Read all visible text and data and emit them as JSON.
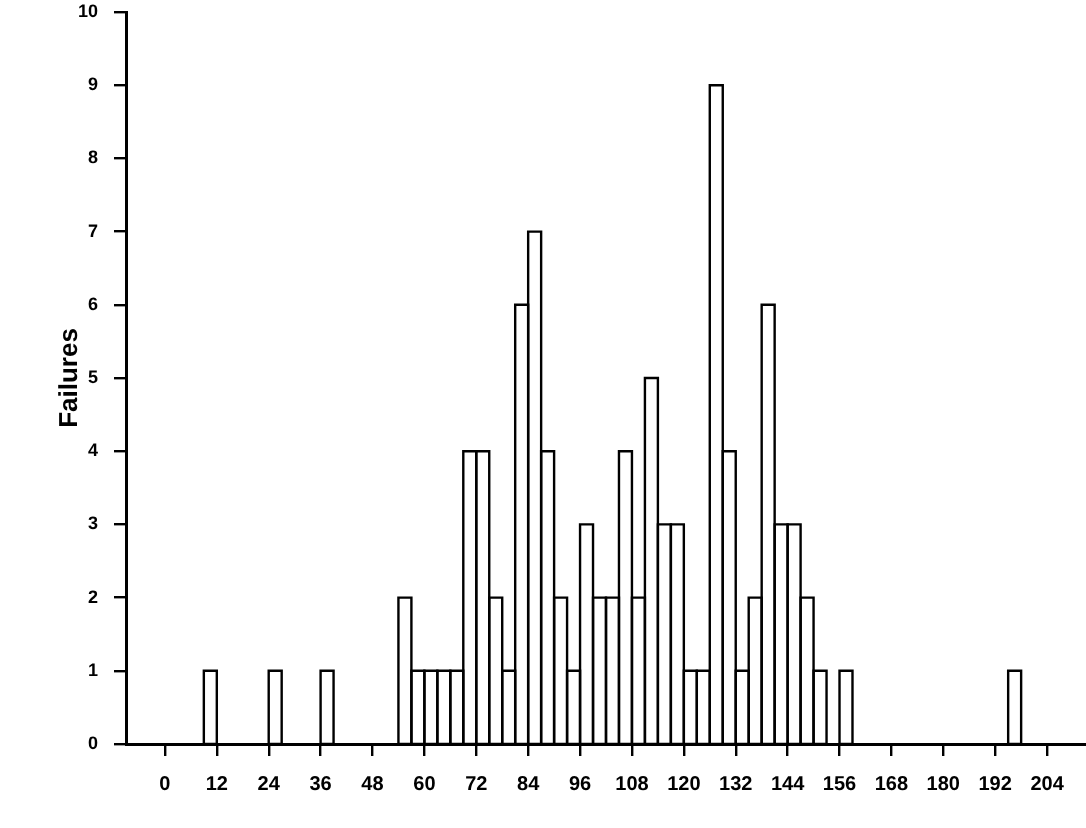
{
  "chart_data": {
    "type": "histogram",
    "ylabel": "Failures",
    "bins": [
      9,
      12,
      24,
      27,
      36,
      39,
      54,
      57,
      60,
      63,
      66,
      69,
      72,
      75,
      78,
      81,
      84,
      87,
      90,
      93,
      96,
      99,
      102,
      105,
      108,
      111,
      114,
      117,
      120,
      123,
      126,
      129,
      132,
      135,
      138,
      141,
      144,
      147,
      150,
      153,
      156,
      159,
      195,
      198
    ],
    "values": [
      1,
      0,
      1,
      0,
      1,
      0,
      2,
      1,
      1,
      1,
      1,
      4,
      4,
      2,
      1,
      6,
      7,
      4,
      2,
      1,
      3,
      2,
      2,
      4,
      2,
      5,
      3,
      3,
      1,
      1,
      9,
      4,
      1,
      2,
      6,
      3,
      3,
      2,
      1,
      0,
      1,
      0,
      1
    ],
    "color": "#000000",
    "xlim": [
      -9,
      213
    ],
    "xticks": [
      0,
      12,
      24,
      36,
      48,
      60,
      72,
      84,
      96,
      108,
      120,
      132,
      144,
      156,
      168,
      180,
      192,
      204
    ],
    "ylim": [
      0,
      10
    ],
    "yticks": [
      0,
      1,
      2,
      3,
      4,
      5,
      6,
      7,
      8,
      9,
      10
    ],
    "grid": false
  }
}
